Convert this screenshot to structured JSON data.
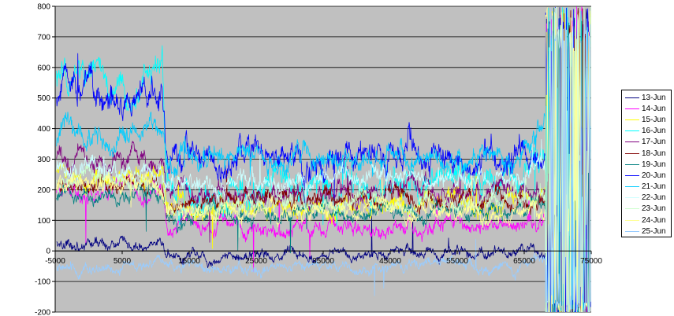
{
  "chart_data": {
    "type": "line",
    "title": "",
    "xlabel": "",
    "ylabel": "",
    "xlim": [
      -5000,
      75000
    ],
    "ylim": [
      -200,
      800
    ],
    "x_ticks": [
      "-5000",
      "5000",
      "15000",
      "25000",
      "35000",
      "45000",
      "55000",
      "65000",
      "75000"
    ],
    "y_ticks": [
      "800",
      "700",
      "600",
      "500",
      "400",
      "300",
      "200",
      "100",
      "0",
      "-100",
      "-200"
    ],
    "grid": "horizontal",
    "plot_background": "#c0c0c0",
    "legend_position": "right",
    "series": [
      {
        "name": "13-Jun",
        "color": "#000080",
        "levels": [
          -5000,
          20,
          11000,
          20,
          11600,
          -20,
          63000,
          0,
          68000,
          0
        ]
      },
      {
        "name": "14-Jun",
        "color": "#ff00ff",
        "levels": [
          -5000,
          190,
          11000,
          200,
          11600,
          75,
          63000,
          85,
          68000,
          90
        ]
      },
      {
        "name": "15-Jun",
        "color": "#ffff00",
        "levels": [
          -5000,
          250,
          11000,
          250,
          11600,
          140,
          63000,
          150,
          68000,
          180
        ]
      },
      {
        "name": "16-Jun",
        "color": "#00ffff",
        "levels": [
          -5000,
          560,
          11000,
          580,
          11600,
          200,
          63000,
          200,
          68000,
          300
        ]
      },
      {
        "name": "17-Jun",
        "color": "#800080",
        "levels": [
          -5000,
          300,
          11000,
          300,
          11600,
          185,
          63000,
          200,
          68000,
          200
        ]
      },
      {
        "name": "18-Jun",
        "color": "#800000",
        "levels": [
          -5000,
          210,
          11000,
          210,
          11600,
          160,
          63000,
          170,
          68000,
          180
        ]
      },
      {
        "name": "19-Jun",
        "color": "#008080",
        "levels": [
          -5000,
          180,
          11000,
          175,
          11600,
          110,
          63000,
          140,
          68000,
          160
        ]
      },
      {
        "name": "20-Jun",
        "color": "#0000ff",
        "levels": [
          -5000,
          500,
          11000,
          510,
          11600,
          310,
          63000,
          330,
          68000,
          340
        ]
      },
      {
        "name": "21-Jun",
        "color": "#00ccff",
        "levels": [
          -5000,
          360,
          11000,
          380,
          11600,
          300,
          63000,
          300,
          68000,
          420
        ]
      },
      {
        "name": "22-Jun",
        "color": "#ccffff",
        "levels": [
          -5000,
          270,
          11000,
          270,
          11600,
          230,
          63000,
          240,
          68000,
          260
        ]
      },
      {
        "name": "23-Jun",
        "color": "#ccffcc",
        "levels": [
          -5000,
          230,
          11000,
          230,
          11600,
          150,
          63000,
          160,
          68000,
          170
        ]
      },
      {
        "name": "24-Jun",
        "color": "#ffff99",
        "levels": [
          -5000,
          220,
          11000,
          220,
          11600,
          130,
          63000,
          135,
          68000,
          150
        ]
      },
      {
        "name": "25-Jun",
        "color": "#99ccff",
        "levels": [
          -5000,
          -60,
          11000,
          -55,
          11600,
          -60,
          63000,
          -50,
          68000,
          -40
        ]
      }
    ]
  }
}
